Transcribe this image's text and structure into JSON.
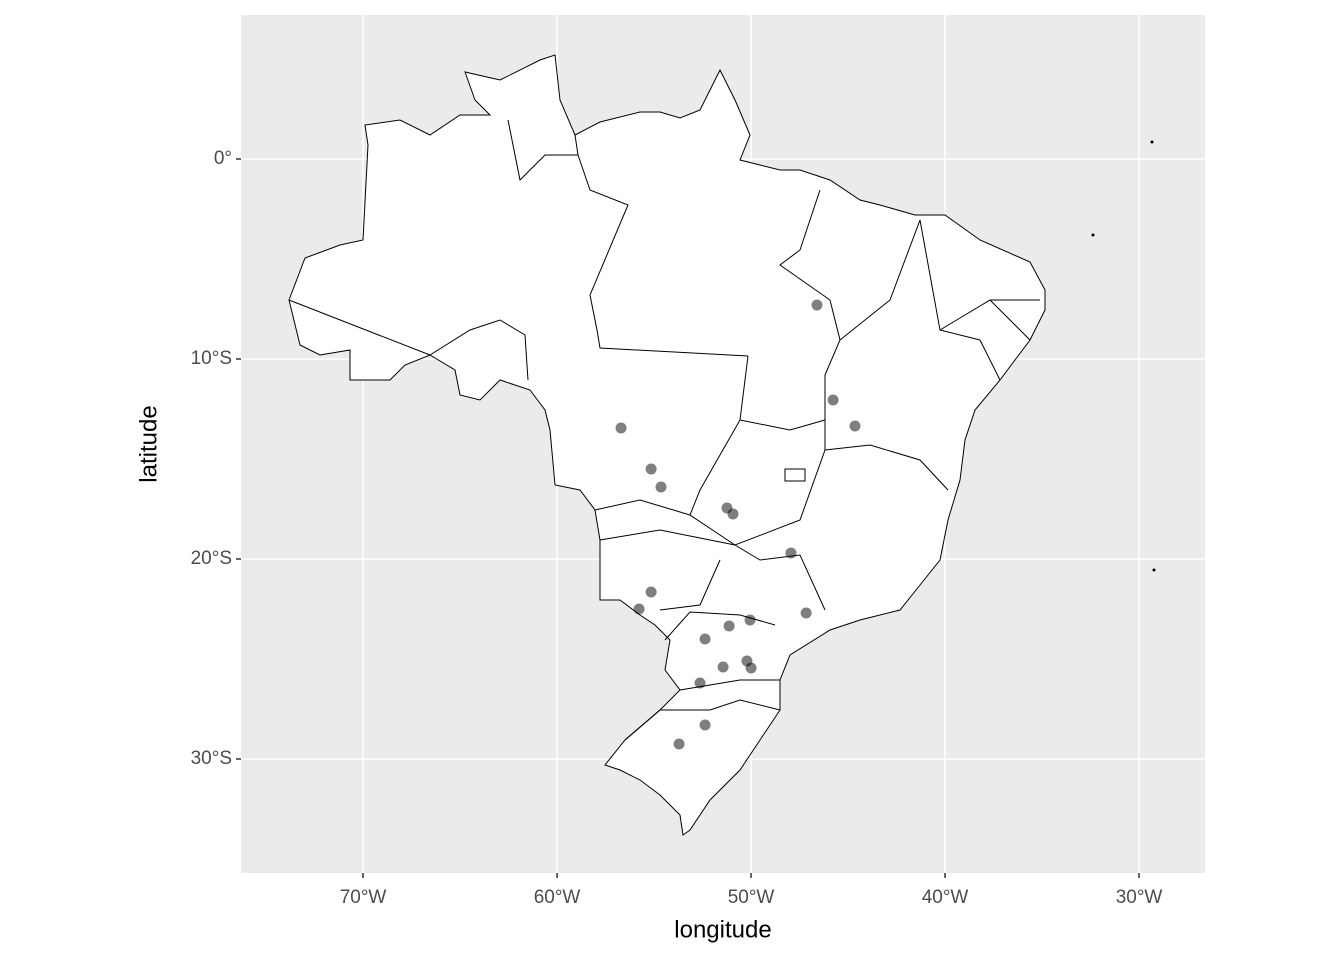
{
  "chart_data": {
    "type": "scatter",
    "xlabel": "longitude",
    "ylabel": "latitude",
    "x": [
      -46.6,
      -45.77,
      -44.64,
      -56.7,
      -55.15,
      -54.64,
      -51.24,
      -50.93,
      -47.94,
      -55.15,
      -55.77,
      -47.16,
      -51.13,
      -50.05,
      -52.37,
      -50.21,
      -50.0,
      -51.44,
      -52.63,
      -52.37,
      -53.71
    ],
    "values": [
      -7.3,
      -12.05,
      -13.35,
      -13.45,
      -15.5,
      -16.4,
      -17.45,
      -17.75,
      -19.7,
      -21.65,
      -22.5,
      -22.7,
      -23.35,
      -23.05,
      -24.0,
      -25.1,
      -25.45,
      -25.4,
      -26.2,
      -28.3,
      -29.25
    ],
    "color": "#000000",
    "alpha": 0.5,
    "xlim": [
      -76.29,
      -26.6
    ],
    "ylim": [
      -35.7,
      7.2
    ],
    "xticks": [
      {
        "value": -70,
        "label": "70°W"
      },
      {
        "value": -60,
        "label": "60°W"
      },
      {
        "value": -50,
        "label": "50°W"
      },
      {
        "value": -40,
        "label": "40°W"
      },
      {
        "value": -30,
        "label": "30°W"
      }
    ],
    "yticks": [
      {
        "value": 0,
        "label": "0°"
      },
      {
        "value": -10,
        "label": "10°S"
      },
      {
        "value": -20,
        "label": "20°S"
      },
      {
        "value": -30,
        "label": "30°S"
      }
    ],
    "grid": true
  }
}
